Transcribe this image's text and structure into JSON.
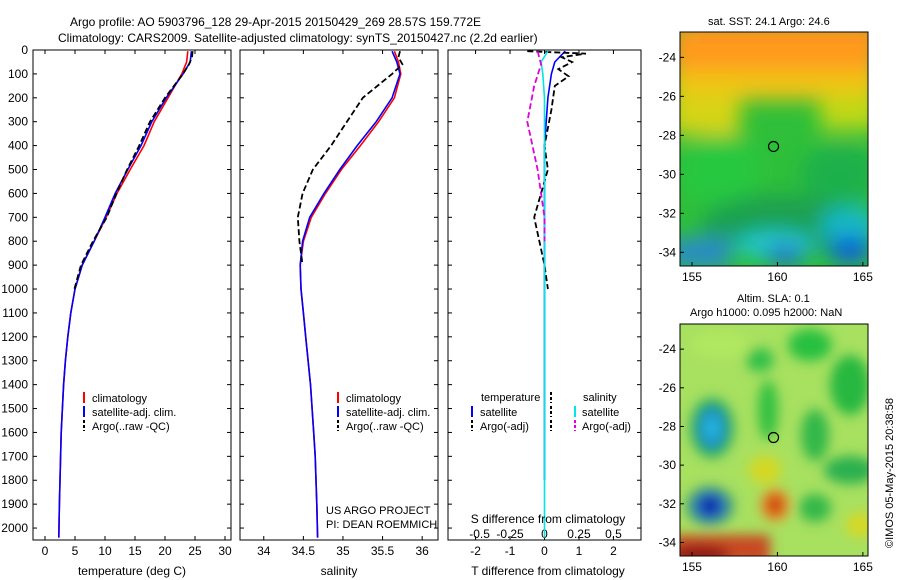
{
  "header": {
    "line1": "Argo profile: AO 5903796_128 29-Apr-2015 20150429_269 28.57S 159.772E",
    "line2": "Climatology: CARS2009. Satellite-adjusted climatology: synTS_20150427.nc (2.2d earlier)"
  },
  "credits": {
    "project": "US ARGO PROJECT",
    "pi": "PI: DEAN ROEMMICH",
    "watermark": "©IMOS 05-May-2015 20:38:58"
  },
  "colors": {
    "climatology": "#ff0000",
    "satellite": "#0000ff",
    "argo": "#000000",
    "salinity_satellite": "#00e5e5",
    "salinity_argo": "#e000e0"
  },
  "chart_data": [
    {
      "type": "line",
      "xlabel": "temperature (deg C)",
      "ylabel": "",
      "xlim": [
        -2,
        31
      ],
      "ylim": [
        2050,
        0
      ],
      "xticks": [
        0,
        5,
        10,
        15,
        20,
        25,
        30
      ],
      "yticks": [
        0,
        100,
        200,
        300,
        400,
        500,
        600,
        700,
        800,
        900,
        1000,
        1100,
        1200,
        1300,
        1400,
        1500,
        1600,
        1700,
        1800,
        1900,
        2000
      ],
      "legend": [
        "climatology",
        "satellite-adj. clim.",
        "Argo(..raw -QC)"
      ],
      "legend_position": "lower-left",
      "series": [
        {
          "name": "climatology",
          "color": "#ff0000",
          "dashed": false,
          "x": [
            23.8,
            23.6,
            22.8,
            20.5,
            18.2,
            16.5,
            14.2,
            12.0,
            10.2,
            8.2,
            6.2,
            5.0,
            4.3,
            3.8,
            3.4,
            3.1,
            2.9,
            2.7,
            2.6,
            2.5,
            2.4,
            2.3
          ],
          "y": [
            5,
            50,
            100,
            200,
            300,
            400,
            500,
            600,
            700,
            800,
            900,
            1000,
            1100,
            1200,
            1300,
            1400,
            1500,
            1600,
            1700,
            1800,
            1900,
            2040
          ]
        },
        {
          "name": "satellite-adj. clim.",
          "color": "#0000ff",
          "dashed": false,
          "x": [
            24.4,
            24.2,
            23.0,
            20.2,
            17.8,
            16.0,
            13.8,
            11.7,
            10.0,
            8.2,
            6.2,
            5.0,
            4.3,
            3.8,
            3.4,
            3.1,
            2.9,
            2.7,
            2.6,
            2.5,
            2.4,
            2.3
          ],
          "y": [
            5,
            50,
            100,
            200,
            300,
            400,
            500,
            600,
            700,
            800,
            900,
            1000,
            1100,
            1200,
            1300,
            1400,
            1500,
            1600,
            1700,
            1800,
            1900,
            2040
          ]
        },
        {
          "name": "Argo(..raw -QC)",
          "color": "#000000",
          "dashed": true,
          "x": [
            24.6,
            24.5,
            24.0,
            23.0,
            20.0,
            17.5,
            15.7,
            13.7,
            11.9,
            10.3,
            8.0,
            6.0,
            4.9
          ],
          "y": [
            5,
            30,
            60,
            100,
            200,
            300,
            400,
            500,
            600,
            700,
            800,
            900,
            1000
          ]
        }
      ]
    },
    {
      "type": "line",
      "xlabel": "salinity",
      "ylabel": "",
      "xlim": [
        33.7,
        36.2
      ],
      "ylim": [
        2050,
        0
      ],
      "xticks": [
        34,
        34.5,
        35,
        35.5,
        36
      ],
      "legend": [
        "climatology",
        "satellite-adj. clim.",
        "Argo(..raw -QC)"
      ],
      "legend_position": "lower-left",
      "series": [
        {
          "name": "climatology",
          "color": "#ff0000",
          "dashed": false,
          "x": [
            35.65,
            35.7,
            35.73,
            35.65,
            35.45,
            35.22,
            34.98,
            34.78,
            34.6,
            34.5,
            34.46,
            34.47,
            34.5,
            34.53,
            34.56,
            34.59,
            34.61,
            34.63,
            34.65,
            34.66,
            34.67,
            34.68
          ],
          "y": [
            5,
            50,
            100,
            200,
            300,
            400,
            500,
            600,
            700,
            800,
            900,
            1000,
            1100,
            1200,
            1300,
            1400,
            1500,
            1600,
            1700,
            1800,
            1900,
            2040
          ]
        },
        {
          "name": "satellite-adj. clim.",
          "color": "#0000ff",
          "dashed": false,
          "x": [
            35.62,
            35.68,
            35.72,
            35.62,
            35.42,
            35.18,
            34.96,
            34.76,
            34.58,
            34.49,
            34.46,
            34.47,
            34.5,
            34.53,
            34.56,
            34.59,
            34.61,
            34.63,
            34.65,
            34.66,
            34.67,
            34.68
          ],
          "y": [
            5,
            50,
            100,
            200,
            300,
            400,
            500,
            600,
            700,
            800,
            900,
            1000,
            1100,
            1200,
            1300,
            1400,
            1500,
            1600,
            1700,
            1800,
            1900,
            2040
          ]
        },
        {
          "name": "Argo(..raw -QC)",
          "color": "#000000",
          "dashed": true,
          "x": [
            35.72,
            35.7,
            35.75,
            35.62,
            35.25,
            35.05,
            34.85,
            34.62,
            34.49,
            34.43,
            34.45,
            34.49
          ],
          "y": [
            5,
            30,
            60,
            100,
            200,
            300,
            400,
            500,
            600,
            700,
            800,
            900
          ]
        }
      ]
    },
    {
      "type": "line",
      "xlabel": "T difference from climatology",
      "ylabel": "",
      "xlim": [
        -2.8,
        2.8
      ],
      "ylim": [
        2050,
        0
      ],
      "xticks": [
        -2,
        -1,
        0,
        1,
        2
      ],
      "secondary_xlabel": "S difference from climatology",
      "secondary_xticks": [
        "-0.5",
        "-0.25",
        "0",
        "0.25",
        "0.5"
      ],
      "legend_temperature_title": "temperature",
      "legend_salinity_title": "salinity",
      "legend_temperature": [
        "satellite",
        "Argo(-adj)"
      ],
      "legend_salinity": [
        "satellite",
        "Argo(-adj)"
      ],
      "legend_position": "lower-center",
      "series": [
        {
          "name": "temperature satellite",
          "color": "#0000ff",
          "dashed": false,
          "x": [
            0.6,
            0.3,
            0.2,
            0.1,
            0.05,
            0.0,
            0.0,
            0.0,
            0.0,
            0.0,
            0.0,
            0.0,
            0.0
          ],
          "y": [
            5,
            50,
            100,
            200,
            300,
            400,
            500,
            600,
            700,
            800,
            900,
            1000,
            1800
          ]
        },
        {
          "name": "temperature Argo(-adj)",
          "color": "#000000",
          "dashed": true,
          "x": [
            -0.5,
            1.2,
            0.5,
            0.8,
            0.4,
            0.7,
            0.3,
            0.2,
            0.0,
            0.1,
            -0.3,
            0.0,
            0.1
          ],
          "y": [
            5,
            15,
            30,
            50,
            80,
            110,
            150,
            250,
            400,
            500,
            700,
            900,
            1000
          ]
        },
        {
          "name": "salinity satellite",
          "color": "#00e5e5",
          "dashed": false,
          "x": [
            0.1,
            -0.1,
            -0.05,
            0.0,
            0.0,
            0.0,
            0.0,
            0.0,
            0.0
          ],
          "y": [
            5,
            50,
            100,
            200,
            400,
            600,
            800,
            1000,
            2040
          ]
        },
        {
          "name": "salinity Argo(-adj)",
          "color": "#e000e0",
          "dashed": true,
          "x": [
            -0.2,
            -0.1,
            -0.3,
            -0.5,
            -0.2,
            0.0,
            0.0
          ],
          "y": [
            5,
            60,
            150,
            300,
            500,
            700,
            800
          ]
        }
      ]
    },
    {
      "type": "heatmap",
      "title": "sat. SST: 24.1 Argo: 24.6",
      "xlim": [
        154.3,
        165.3
      ],
      "ylim": [
        -34.7,
        -22.7
      ],
      "xticks": [
        155,
        160,
        165
      ],
      "yticks": [
        -24,
        -26,
        -28,
        -30,
        -32,
        -34
      ],
      "marker": {
        "lon": 159.772,
        "lat": -28.57
      }
    },
    {
      "type": "heatmap",
      "title": "Altim. SLA: 0.1",
      "subtitle": "Argo h1000: 0.095 h2000: NaN",
      "xlim": [
        154.3,
        165.3
      ],
      "ylim": [
        -34.7,
        -22.7
      ],
      "xticks": [
        155,
        160,
        165
      ],
      "yticks": [
        -24,
        -26,
        -28,
        -30,
        -32,
        -34
      ],
      "marker": {
        "lon": 159.772,
        "lat": -28.57
      }
    }
  ]
}
